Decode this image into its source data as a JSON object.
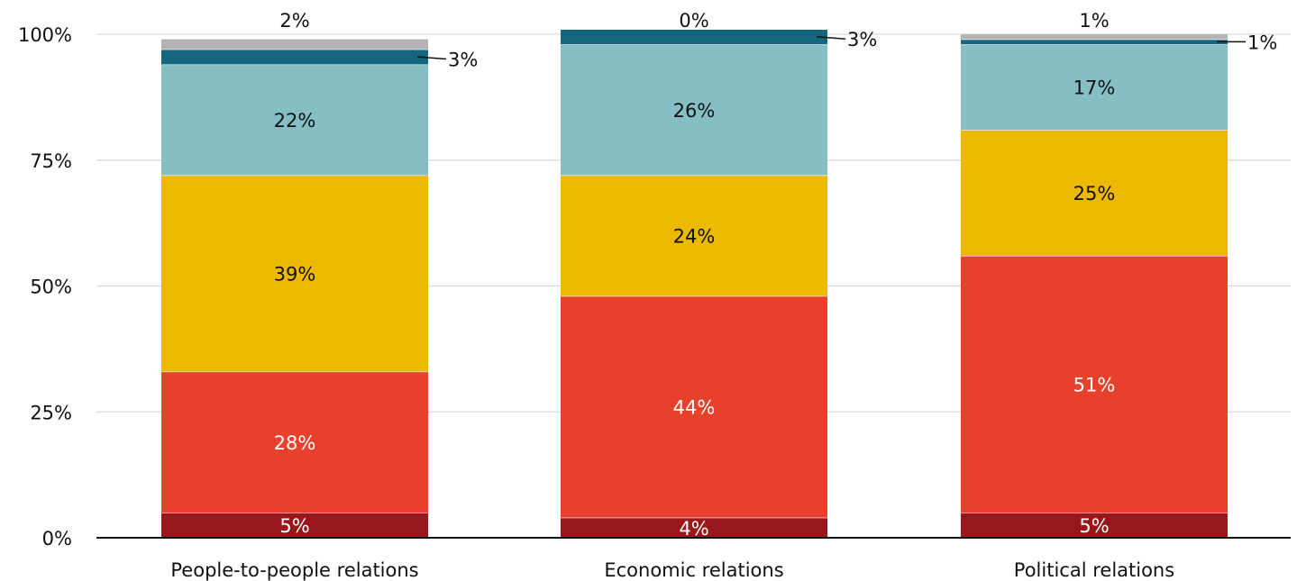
{
  "chart_data": {
    "type": "bar",
    "stacked": true,
    "categories": [
      "People-to-people relations",
      "Economic relations",
      "Political relations"
    ],
    "series": [
      {
        "color": "#99161b",
        "label_color": "#ffffff",
        "values": [
          5,
          4,
          5
        ],
        "labels": [
          "5%",
          "4%",
          "5%"
        ]
      },
      {
        "color": "#e8412b",
        "label_color": "#ffffff",
        "values": [
          28,
          44,
          51
        ],
        "labels": [
          "28%",
          "44%",
          "51%"
        ]
      },
      {
        "color": "#ecb800",
        "label_color": "#111111",
        "values": [
          39,
          24,
          25
        ],
        "labels": [
          "39%",
          "24%",
          "25%"
        ]
      },
      {
        "color": "#86bec6",
        "label_color": "#111111",
        "values": [
          22,
          26,
          17
        ],
        "labels": [
          "22%",
          "26%",
          "17%"
        ]
      },
      {
        "color": "#14667e",
        "label_color": "#111111",
        "values": [
          3,
          3,
          1
        ],
        "labels": [
          "3%",
          "3%",
          "1%"
        ],
        "label_placement": "right-leader"
      },
      {
        "color": "#b3b3b3",
        "label_color": "#111111",
        "values": [
          2,
          0,
          1
        ],
        "labels": [
          "2%",
          "0%",
          "1%"
        ],
        "label_placement": "above"
      }
    ],
    "ylim": [
      0,
      100
    ],
    "yticks": [
      0,
      25,
      50,
      75,
      100
    ],
    "ytick_labels": [
      "0%",
      "25%",
      "50%",
      "75%",
      "100%"
    ],
    "grid": true,
    "title": "",
    "xlabel": "",
    "ylabel": ""
  }
}
